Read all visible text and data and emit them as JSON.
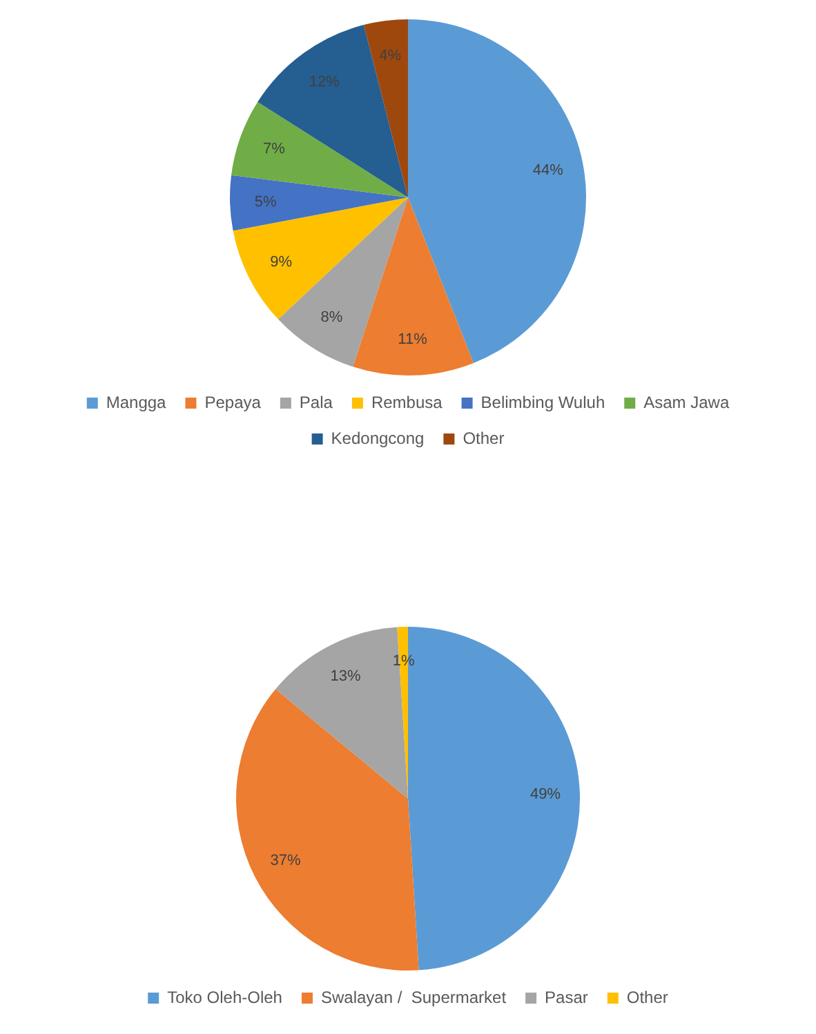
{
  "chart_data": [
    {
      "type": "pie",
      "categories": [
        "Mangga",
        "Pepaya",
        "Pala",
        "Rembusa",
        "Belimbing Wuluh",
        "Asam Jawa",
        "Kedongcong",
        "Other"
      ],
      "values": [
        44,
        11,
        8,
        9,
        5,
        7,
        12,
        4
      ],
      "colors": [
        "#5b9bd5",
        "#ed7d31",
        "#a5a5a5",
        "#ffc000",
        "#4472c4",
        "#70ad47",
        "#255e91",
        "#9e480e"
      ],
      "value_labels": [
        "44%",
        "11%",
        "8%",
        "9%",
        "5%",
        "7%",
        "12%",
        "4%"
      ],
      "legend": "bottom"
    },
    {
      "type": "pie",
      "categories": [
        "Toko Oleh-Oleh",
        "Swalayan /  Supermarket",
        "Pasar",
        "Other"
      ],
      "values": [
        49,
        37,
        13,
        1
      ],
      "colors": [
        "#5b9bd5",
        "#ed7d31",
        "#a5a5a5",
        "#ffc000"
      ],
      "value_labels": [
        "49%",
        "37%",
        "13%",
        "1%"
      ],
      "legend": "bottom"
    }
  ]
}
